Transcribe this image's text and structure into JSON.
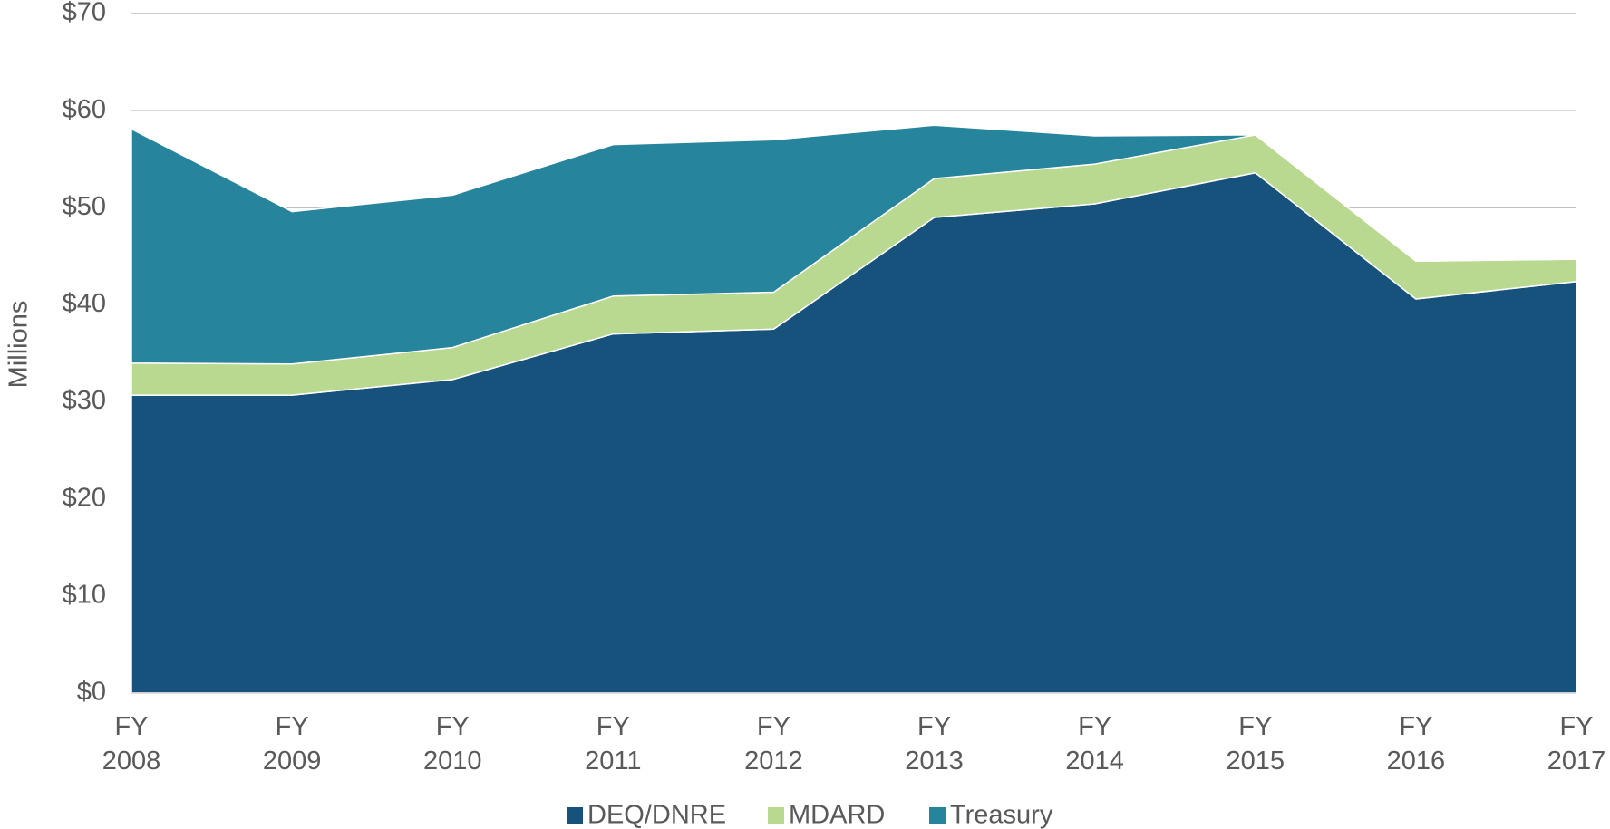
{
  "chart_data": {
    "type": "area",
    "stacked": true,
    "y_label": "Millions",
    "categories": [
      "FY 2008",
      "FY 2009",
      "FY 2010",
      "FY 2011",
      "FY 2012",
      "FY 2013",
      "FY 2014",
      "FY 2015",
      "FY 2016",
      "FY 2017"
    ],
    "series": [
      {
        "name": "DEQ/DNRE",
        "color": "#17527c",
        "values": [
          30.7,
          30.7,
          32.3,
          37.0,
          37.5,
          49.0,
          50.4,
          53.6,
          40.6,
          42.4
        ]
      },
      {
        "name": "MDARD",
        "color": "#b8d98f",
        "values": [
          3.3,
          3.2,
          3.3,
          3.9,
          3.8,
          4.0,
          4.1,
          3.9,
          3.9,
          2.3
        ]
      },
      {
        "name": "Treasury",
        "color": "#26849c",
        "values": [
          24.1,
          15.7,
          15.7,
          15.6,
          15.7,
          5.5,
          2.9,
          0,
          0,
          0
        ]
      }
    ],
    "ylim": [
      0,
      70
    ],
    "yticks": [
      {
        "value": 0,
        "label": "$0"
      },
      {
        "value": 10,
        "label": "$10"
      },
      {
        "value": 20,
        "label": "$20"
      },
      {
        "value": 30,
        "label": "$30"
      },
      {
        "value": 40,
        "label": "$40"
      },
      {
        "value": 50,
        "label": "$50"
      },
      {
        "value": 60,
        "label": "$60"
      },
      {
        "value": 70,
        "label": "$70"
      }
    ],
    "grid": true,
    "legend": "bottom"
  }
}
